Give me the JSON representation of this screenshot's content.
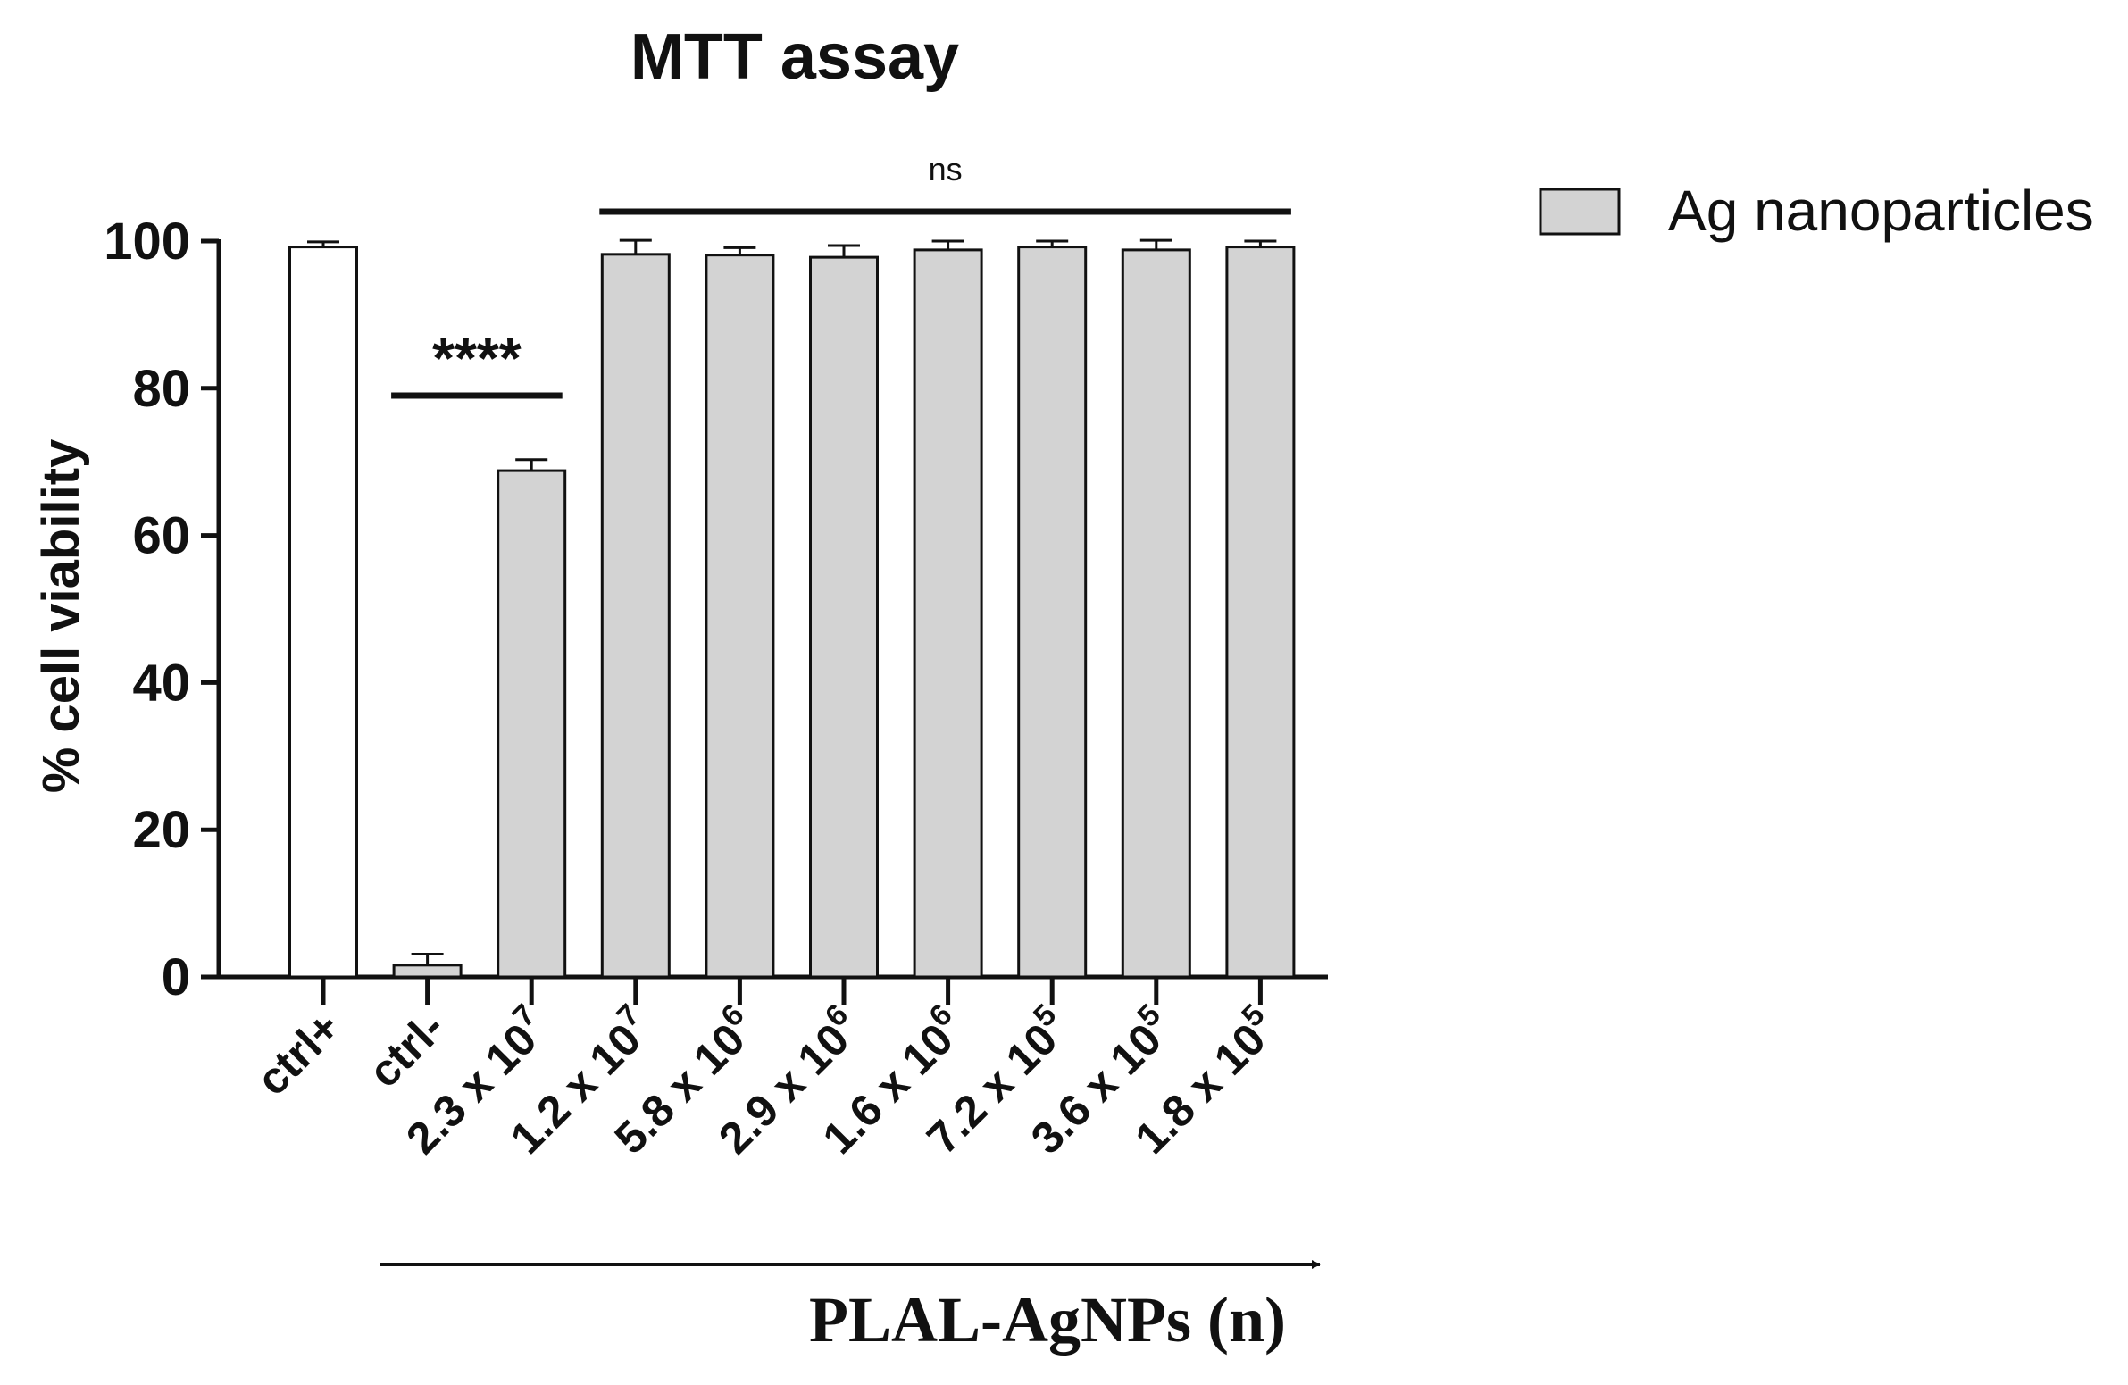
{
  "chart_data": {
    "type": "bar",
    "title": "MTT assay",
    "ylabel": "% cell viability",
    "xlabel": "PLAL-AgNPs (n)",
    "ylim": [
      0,
      100
    ],
    "yticks": [
      "0",
      "20",
      "40",
      "60",
      "80",
      "100"
    ],
    "categories": [
      {
        "base": "ctrl+",
        "exp": ""
      },
      {
        "base": "ctrl-",
        "exp": ""
      },
      {
        "base": "2.3 x 10",
        "exp": "7"
      },
      {
        "base": "1.2 x 10",
        "exp": "7"
      },
      {
        "base": "5.8 x 10",
        "exp": "6"
      },
      {
        "base": "2.9 x 10",
        "exp": "6"
      },
      {
        "base": "1.6 x 10",
        "exp": "6"
      },
      {
        "base": "7.2 x 10",
        "exp": "5"
      },
      {
        "base": "3.6 x 10",
        "exp": "5"
      },
      {
        "base": "1.8 x 10",
        "exp": "5"
      }
    ],
    "values": [
      99.2,
      1.6,
      68.8,
      98.2,
      98.1,
      97.8,
      98.8,
      99.2,
      98.8,
      99.2
    ],
    "errors": [
      0.7,
      1.5,
      1.5,
      1.9,
      1.0,
      1.6,
      1.2,
      0.8,
      1.3,
      0.8
    ],
    "fills": [
      "#ffffff",
      "#d3d3d3",
      "#d3d3d3",
      "#d3d3d3",
      "#d3d3d3",
      "#d3d3d3",
      "#d3d3d3",
      "#d3d3d3",
      "#d3d3d3",
      "#d3d3d3"
    ],
    "legend": {
      "label": "Ag nanoparticles",
      "color": "#d3d3d3",
      "position": "top-right"
    },
    "annotations": [
      {
        "text": "****",
        "from": 1,
        "to": 2,
        "y": 79
      },
      {
        "text": "ns",
        "from": 3,
        "to": 9,
        "y": 104
      }
    ]
  }
}
